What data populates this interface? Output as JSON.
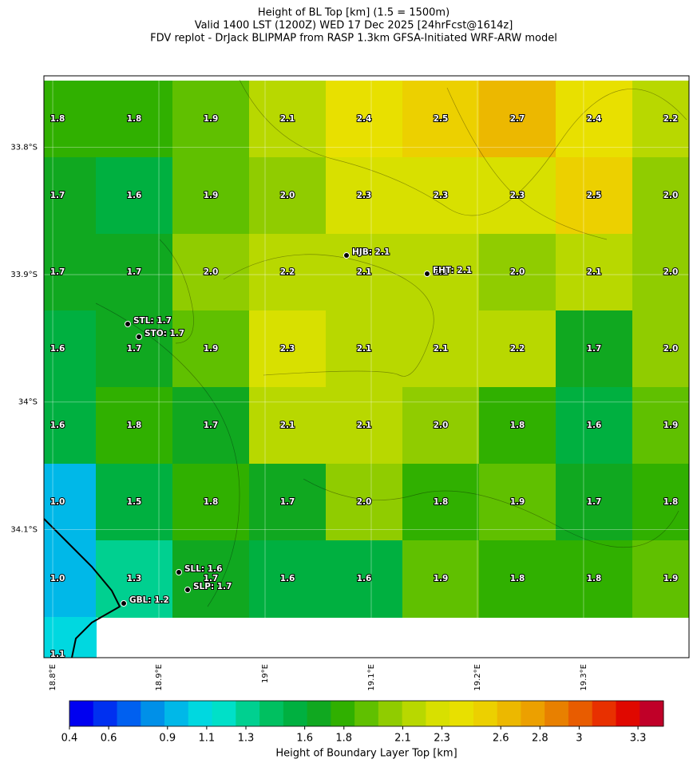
{
  "chart_data": {
    "type": "gridmap",
    "title": [
      "Height of BL Top [km] (1.5 = 1500m)",
      "Valid 1400 LST (1200Z) WED 17 Dec 2025 [24hrFcst@1614z]",
      "FDV replot - DrJack BLIPMAP from RASP 1.3km GFSA-Initiated WRF-ARW model"
    ],
    "xlim": [
      18.7917,
      19.3993
    ],
    "ylim": [
      -34.2006,
      -33.744
    ],
    "xticks": [
      {
        "value": 18.8,
        "label": "18.8°E"
      },
      {
        "value": 18.9,
        "label": "18.9°E"
      },
      {
        "value": 19.0,
        "label": "19°E"
      },
      {
        "value": 19.1,
        "label": "19.1°E"
      },
      {
        "value": 19.2,
        "label": "19.2°E"
      },
      {
        "value": 19.3,
        "label": "19.3°E"
      }
    ],
    "yticks": [
      {
        "value": -33.8,
        "label": "33.8°S"
      },
      {
        "value": -33.9,
        "label": "33.9°S"
      },
      {
        "value": -34.0,
        "label": "34°S"
      },
      {
        "value": -34.1,
        "label": "34.1°S"
      }
    ],
    "grid": true,
    "grid_values": [
      [
        1.8,
        1.8,
        1.9,
        2.1,
        2.4,
        2.5,
        2.7,
        2.4,
        2.2
      ],
      [
        1.7,
        1.6,
        1.9,
        2,
        2.3,
        2.3,
        2.3,
        2.5,
        2
      ],
      [
        1.7,
        1.7,
        2,
        2.2,
        2.1,
        2.1,
        2,
        2.1,
        2
      ],
      [
        1.6,
        1.7,
        1.9,
        2.3,
        2.1,
        2.1,
        2.2,
        1.7,
        2
      ],
      [
        1.6,
        1.8,
        1.7,
        2.1,
        2.1,
        2,
        1.8,
        1.6,
        1.9
      ],
      [
        1,
        1.5,
        1.8,
        1.7,
        2,
        1.8,
        1.9,
        1.7,
        1.8
      ],
      [
        1,
        1.3,
        1.7,
        1.6,
        1.6,
        1.9,
        1.8,
        1.8,
        1.9
      ],
      [
        1.1,
        null,
        null,
        null,
        null,
        null,
        null,
        null,
        null
      ]
    ],
    "grid_value_labels": [
      [
        "1.8",
        "1.8",
        "1.9",
        "2.1",
        "2.4",
        "2.5",
        "2.7",
        "2.4",
        "2.2"
      ],
      [
        "1.7",
        "1.6",
        "1.9",
        "2.0",
        "2.3",
        "2.3",
        "2.3",
        "2.5",
        "2.0"
      ],
      [
        "1.7",
        "1.7",
        "2.0",
        "2.2",
        "2.1",
        "2.1",
        "2.0",
        "2.1",
        "2.0"
      ],
      [
        "1.6",
        "1.7",
        "1.9",
        "2.3",
        "2.1",
        "2.1",
        "2.2",
        "1.7",
        "2.0"
      ],
      [
        "1.6",
        "1.8",
        "1.7",
        "2.1",
        "2.1",
        "2.0",
        "1.8",
        "1.6",
        "1.9"
      ],
      [
        "1.0",
        "1.5",
        "1.8",
        "1.7",
        "2.0",
        "1.8",
        "1.9",
        "1.7",
        "1.8"
      ],
      [
        "1.0",
        "1.3",
        "1.7",
        "1.6",
        "1.6",
        "1.9",
        "1.8",
        "1.8",
        "1.9"
      ],
      [
        "1.1",
        null,
        null,
        null,
        null,
        null,
        null,
        null,
        null
      ]
    ],
    "stations": [
      {
        "label": "HJB: 2.1",
        "value": 2.1
      },
      {
        "label": "FHT: 2.1",
        "value": 2.1
      },
      {
        "label": "STL: 1.7",
        "value": 1.7
      },
      {
        "label": "STO: 1.7",
        "value": 1.7
      },
      {
        "label": "SLL: 1.6",
        "value": 1.6
      },
      {
        "label": "SLP: 1.7",
        "value": 1.7
      },
      {
        "label": "GBL: 1.2",
        "value": 1.2
      }
    ],
    "colorbar": {
      "label": "Height of Boundary Layer Top [km]",
      "clim": [
        0.4,
        3.43
      ],
      "ticks": [
        0.4,
        0.6,
        0.9,
        1.1,
        1.3,
        1.6,
        1.8,
        2.1,
        2.3,
        2.6,
        2.8,
        3.0,
        3.3
      ],
      "colors": [
        "#0000f0",
        "#0030f0",
        "#0060f0",
        "#0090e8",
        "#00b8e8",
        "#00d8e0",
        "#00e0c8",
        "#00d090",
        "#00c060",
        "#00b040",
        "#10a820",
        "#30b000",
        "#60c000",
        "#90cc00",
        "#b8d800",
        "#d8e000",
        "#e8e000",
        "#ecd000",
        "#ecb800",
        "#eca000",
        "#e88000",
        "#e85c00",
        "#e83000",
        "#e00800",
        "#c00028"
      ]
    }
  }
}
